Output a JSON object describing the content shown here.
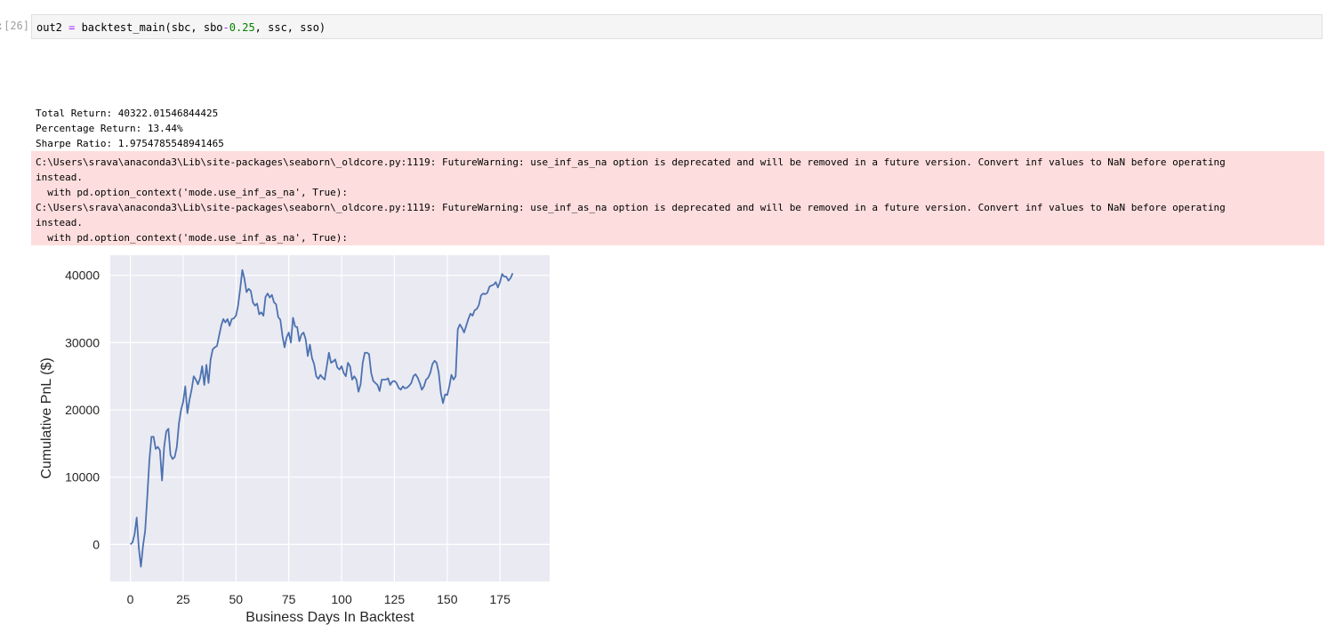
{
  "cell": {
    "prompt": "[26]:",
    "code": {
      "var": "out2 ",
      "eq": "=",
      "call": " backtest_main(sbc, sbo",
      "minus": "-",
      "num": "0.25",
      "rest": ", ssc, sso)"
    }
  },
  "output": {
    "stdout": [
      "Total Return: 40322.01546844425",
      "Percentage Return: 13.44%",
      "Sharpe Ratio: 1.9754785548941465"
    ],
    "stderr": [
      "C:\\Users\\srava\\anaconda3\\Lib\\site-packages\\seaborn\\_oldcore.py:1119: FutureWarning: use_inf_as_na option is deprecated and will be removed in a future version. Convert inf values to NaN before operating",
      "instead.",
      "  with pd.option_context('mode.use_inf_as_na', True):",
      "C:\\Users\\srava\\anaconda3\\Lib\\site-packages\\seaborn\\_oldcore.py:1119: FutureWarning: use_inf_as_na option is deprecated and will be removed in a future version. Convert inf values to NaN before operating",
      "instead.",
      "  with pd.option_context('mode.use_inf_as_na', True):"
    ]
  },
  "chart_data": {
    "type": "line",
    "title": "",
    "xlabel": "Business Days In Backtest",
    "ylabel": "Cumulative PnL ($)",
    "xlim": [
      -9.5,
      198.5
    ],
    "ylim": [
      -5500,
      43000
    ],
    "xticks": [
      0,
      25,
      50,
      75,
      100,
      125,
      150,
      175
    ],
    "yticks": [
      0,
      10000,
      20000,
      30000,
      40000
    ],
    "grid": true,
    "line_color": "#4c72b0",
    "background": "#eaeaf2",
    "series": [
      {
        "values": [
          [
            0,
            0
          ],
          [
            1,
            300
          ],
          [
            2,
            1500
          ],
          [
            3,
            4000
          ],
          [
            4,
            -500
          ],
          [
            5,
            -3300
          ],
          [
            6,
            -200
          ],
          [
            7,
            2000
          ],
          [
            8,
            7000
          ],
          [
            9,
            12500
          ],
          [
            10,
            16000
          ],
          [
            11,
            16000
          ],
          [
            12,
            14200
          ],
          [
            13,
            14500
          ],
          [
            14,
            14000
          ],
          [
            15,
            9500
          ],
          [
            16,
            14500
          ],
          [
            17,
            16800
          ],
          [
            18,
            17200
          ],
          [
            19,
            13300
          ],
          [
            20,
            12700
          ],
          [
            21,
            13000
          ],
          [
            22,
            14500
          ],
          [
            23,
            18000
          ],
          [
            24,
            20000
          ],
          [
            25,
            21200
          ],
          [
            26,
            23500
          ],
          [
            27,
            19500
          ],
          [
            28,
            21500
          ],
          [
            29,
            23000
          ],
          [
            30,
            25000
          ],
          [
            31,
            24500
          ],
          [
            32,
            23800
          ],
          [
            33,
            24700
          ],
          [
            34,
            26500
          ],
          [
            35,
            23700
          ],
          [
            36,
            26700
          ],
          [
            37,
            24000
          ],
          [
            38,
            27500
          ],
          [
            39,
            29000
          ],
          [
            40,
            29300
          ],
          [
            41,
            29500
          ],
          [
            42,
            31000
          ],
          [
            43,
            32500
          ],
          [
            44,
            33500
          ],
          [
            45,
            33000
          ],
          [
            46,
            33500
          ],
          [
            47,
            32500
          ],
          [
            48,
            33500
          ],
          [
            49,
            33600
          ],
          [
            50,
            34000
          ],
          [
            51,
            35500
          ],
          [
            52,
            38000
          ],
          [
            53,
            40800
          ],
          [
            54,
            39500
          ],
          [
            55,
            37500
          ],
          [
            56,
            38000
          ],
          [
            57,
            37700
          ],
          [
            58,
            36000
          ],
          [
            59,
            35500
          ],
          [
            60,
            35800
          ],
          [
            61,
            34200
          ],
          [
            62,
            34500
          ],
          [
            63,
            34000
          ],
          [
            64,
            36800
          ],
          [
            65,
            37300
          ],
          [
            66,
            36700
          ],
          [
            67,
            37100
          ],
          [
            68,
            36000
          ],
          [
            69,
            35700
          ],
          [
            70,
            33800
          ],
          [
            71,
            33400
          ],
          [
            72,
            31000
          ],
          [
            73,
            29300
          ],
          [
            74,
            30800
          ],
          [
            75,
            31500
          ],
          [
            76,
            30000
          ],
          [
            77,
            33700
          ],
          [
            78,
            32400
          ],
          [
            79,
            32300
          ],
          [
            80,
            30200
          ],
          [
            81,
            31200
          ],
          [
            82,
            31500
          ],
          [
            83,
            30500
          ],
          [
            84,
            28000
          ],
          [
            85,
            29700
          ],
          [
            86,
            27700
          ],
          [
            87,
            26800
          ],
          [
            88,
            25000
          ],
          [
            89,
            24600
          ],
          [
            90,
            25200
          ],
          [
            91,
            24800
          ],
          [
            92,
            24500
          ],
          [
            93,
            26500
          ],
          [
            94,
            28500
          ],
          [
            95,
            27000
          ],
          [
            96,
            27200
          ],
          [
            97,
            27500
          ],
          [
            98,
            26300
          ],
          [
            99,
            26000
          ],
          [
            100,
            26500
          ],
          [
            101,
            25500
          ],
          [
            102,
            25000
          ],
          [
            103,
            27000
          ],
          [
            104,
            26500
          ],
          [
            105,
            24500
          ],
          [
            106,
            25000
          ],
          [
            107,
            24500
          ],
          [
            108,
            22700
          ],
          [
            109,
            23800
          ],
          [
            110,
            27000
          ],
          [
            111,
            28500
          ],
          [
            112,
            28500
          ],
          [
            113,
            28300
          ],
          [
            114,
            25500
          ],
          [
            115,
            24300
          ],
          [
            116,
            24000
          ],
          [
            117,
            23700
          ],
          [
            118,
            22800
          ],
          [
            119,
            24500
          ],
          [
            120,
            24500
          ],
          [
            121,
            24500
          ],
          [
            122,
            24700
          ],
          [
            123,
            23700
          ],
          [
            124,
            24200
          ],
          [
            125,
            24300
          ],
          [
            126,
            24000
          ],
          [
            127,
            23300
          ],
          [
            128,
            23000
          ],
          [
            129,
            23500
          ],
          [
            130,
            23200
          ],
          [
            131,
            23300
          ],
          [
            132,
            23600
          ],
          [
            133,
            24000
          ],
          [
            134,
            25000
          ],
          [
            135,
            25300
          ],
          [
            136,
            24800
          ],
          [
            137,
            24000
          ],
          [
            138,
            23000
          ],
          [
            139,
            23500
          ],
          [
            140,
            24500
          ],
          [
            141,
            24800
          ],
          [
            142,
            25500
          ],
          [
            143,
            26800
          ],
          [
            144,
            27300
          ],
          [
            145,
            27000
          ],
          [
            146,
            25500
          ],
          [
            147,
            22500
          ],
          [
            148,
            21000
          ],
          [
            149,
            22300
          ],
          [
            150,
            22200
          ],
          [
            151,
            23500
          ],
          [
            152,
            25200
          ],
          [
            153,
            24500
          ],
          [
            154,
            25000
          ],
          [
            155,
            32000
          ],
          [
            156,
            32700
          ],
          [
            157,
            32200
          ],
          [
            158,
            31500
          ],
          [
            159,
            32500
          ],
          [
            160,
            33500
          ],
          [
            161,
            34300
          ],
          [
            162,
            34000
          ],
          [
            163,
            34800
          ],
          [
            164,
            35000
          ],
          [
            165,
            35600
          ],
          [
            166,
            37000
          ],
          [
            167,
            37300
          ],
          [
            168,
            37200
          ],
          [
            169,
            37400
          ],
          [
            170,
            38300
          ],
          [
            171,
            38500
          ],
          [
            172,
            38600
          ],
          [
            173,
            39000
          ],
          [
            174,
            38200
          ],
          [
            175,
            39000
          ],
          [
            176,
            40200
          ],
          [
            177,
            39800
          ],
          [
            178,
            39800
          ],
          [
            179,
            39200
          ],
          [
            180,
            39600
          ],
          [
            181,
            40300
          ]
        ]
      }
    ]
  }
}
